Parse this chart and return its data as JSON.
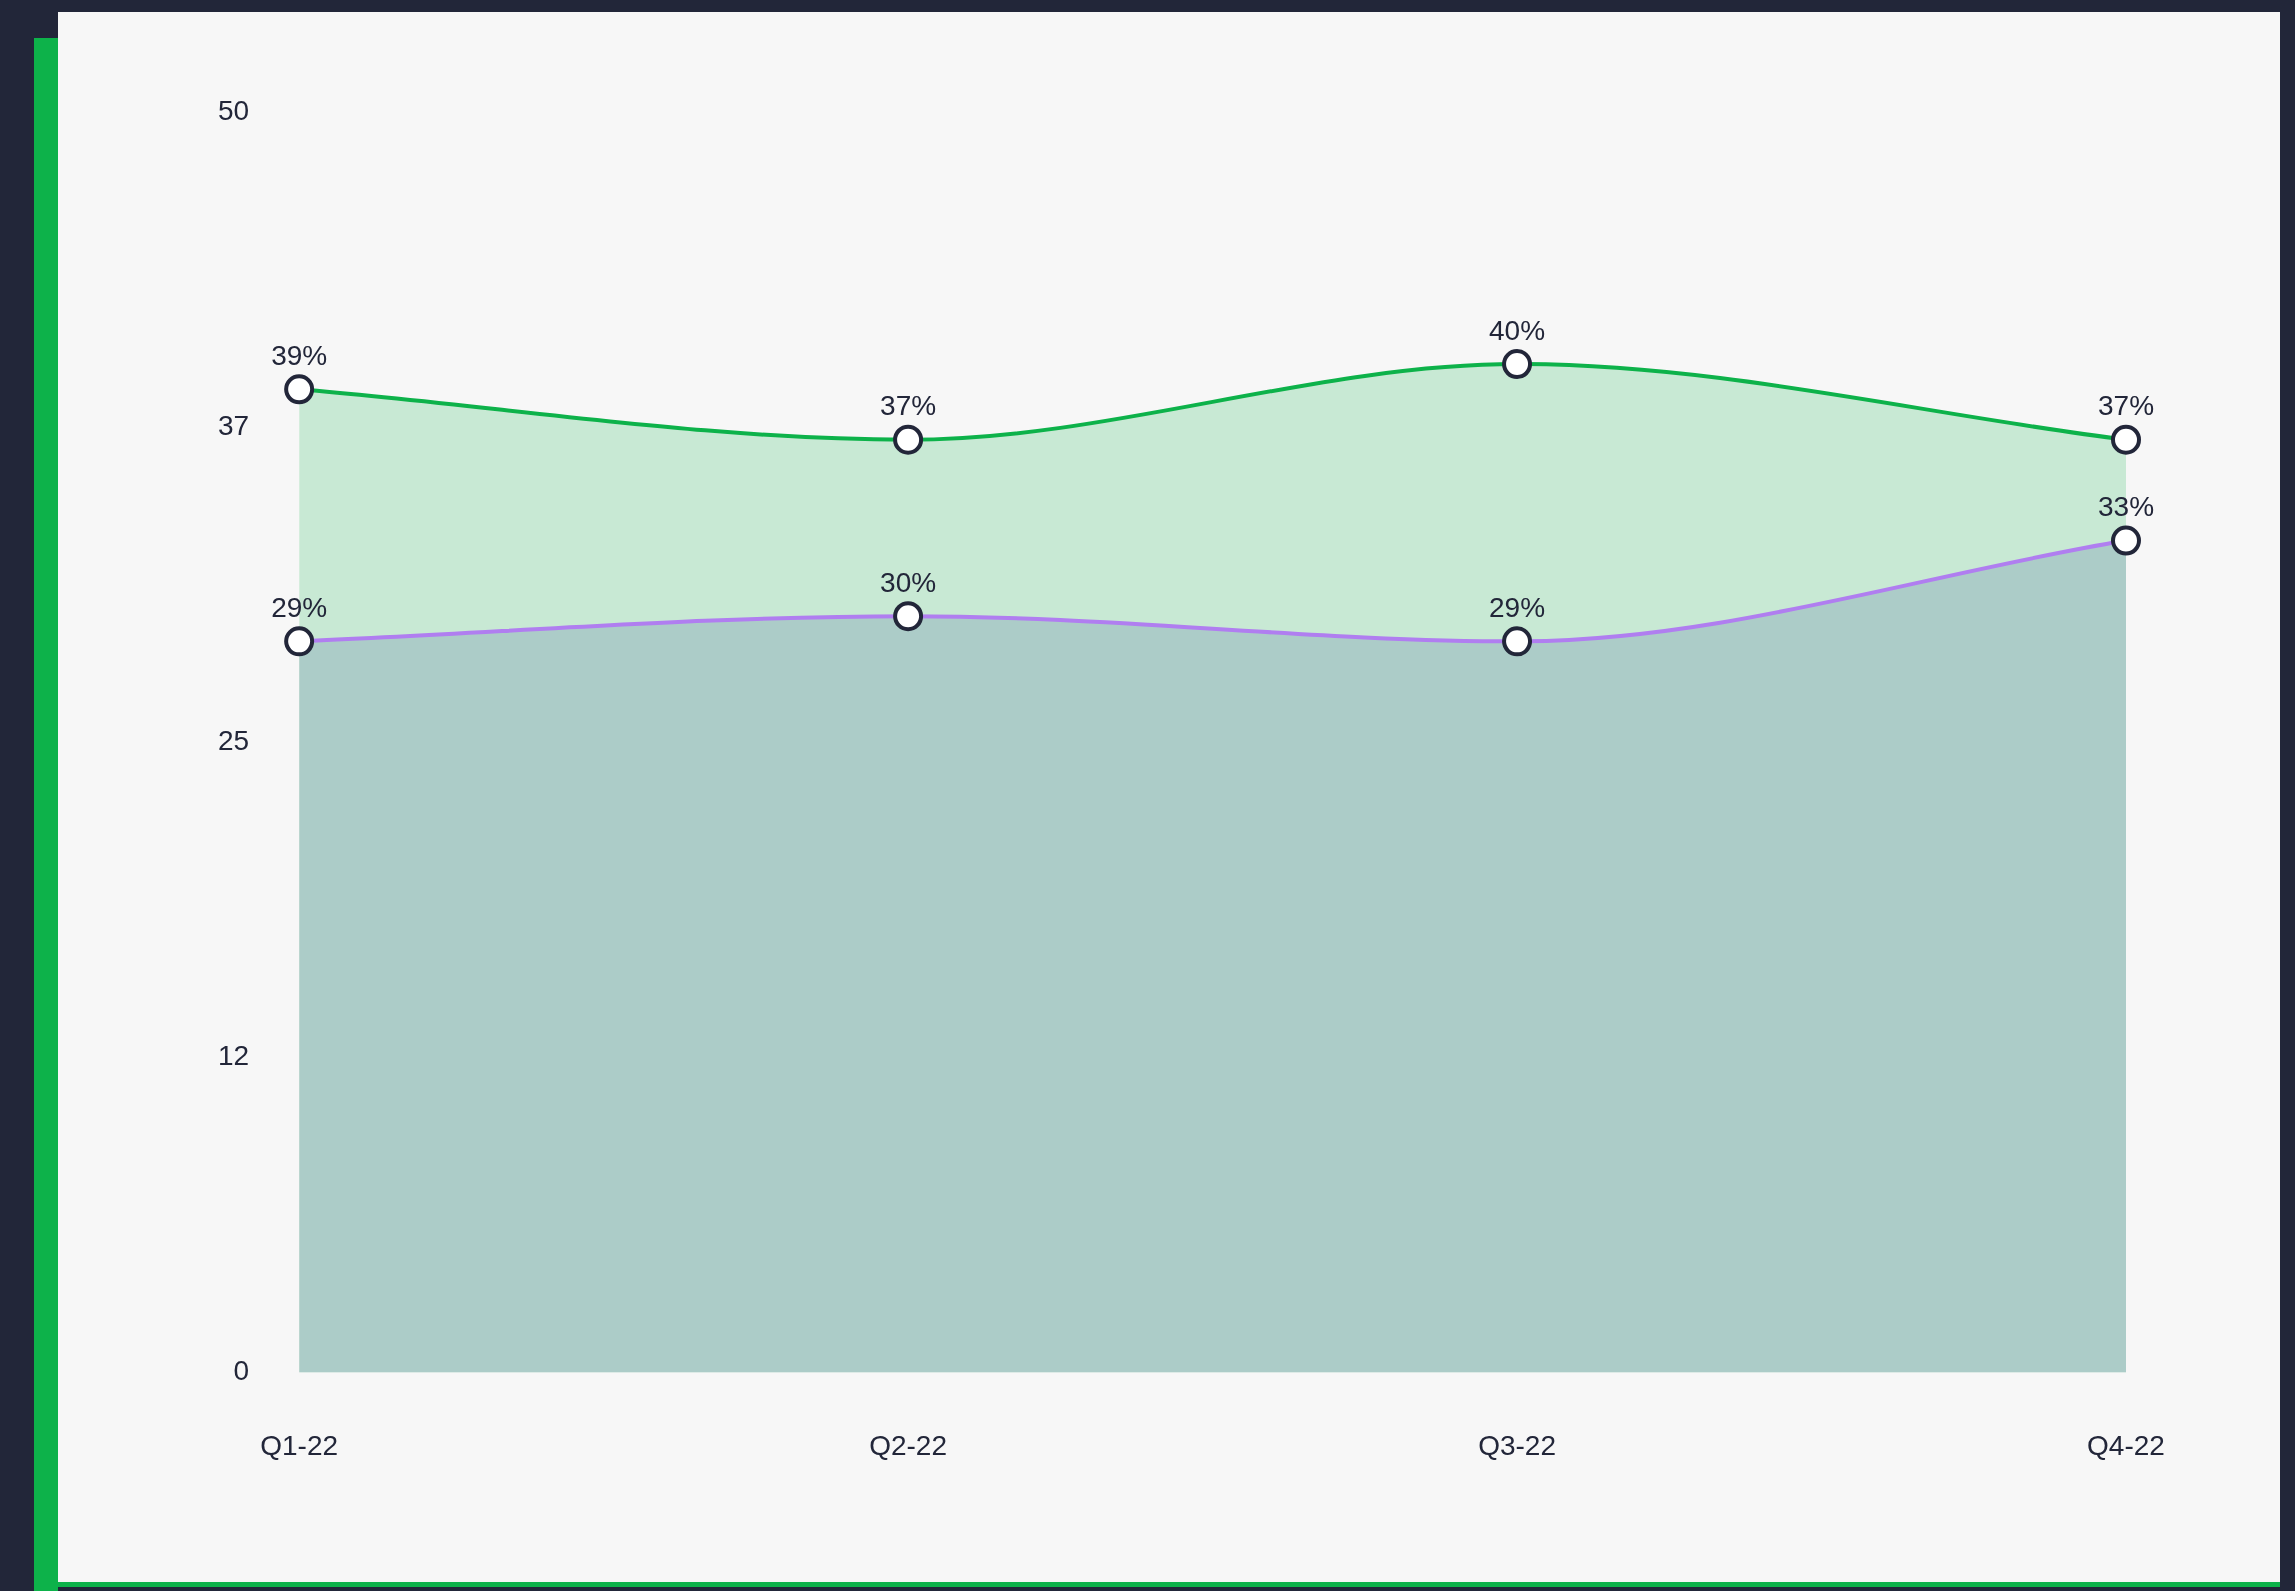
{
  "chart_data": {
    "type": "area",
    "categories": [
      "Q1-22",
      "Q2-22",
      "Q3-22",
      "Q4-22"
    ],
    "series": [
      {
        "color": "#0db24a",
        "values": [
          39,
          37,
          40,
          37
        ],
        "value_labels": [
          "39%",
          "37%",
          "40%",
          "37%"
        ]
      },
      {
        "color": "#b07ef0",
        "values": [
          29,
          30,
          29,
          33
        ],
        "value_labels": [
          "29%",
          "30%",
          "29%",
          "33%"
        ]
      }
    ],
    "ylim": [
      0,
      50
    ],
    "yticks": [
      0,
      {
        "value": 12.5,
        "label": "12"
      },
      25,
      {
        "value": 37.5,
        "label": "37"
      },
      50
    ],
    "grid": false,
    "legend": false,
    "marker": "circle",
    "line_style": "solid"
  }
}
